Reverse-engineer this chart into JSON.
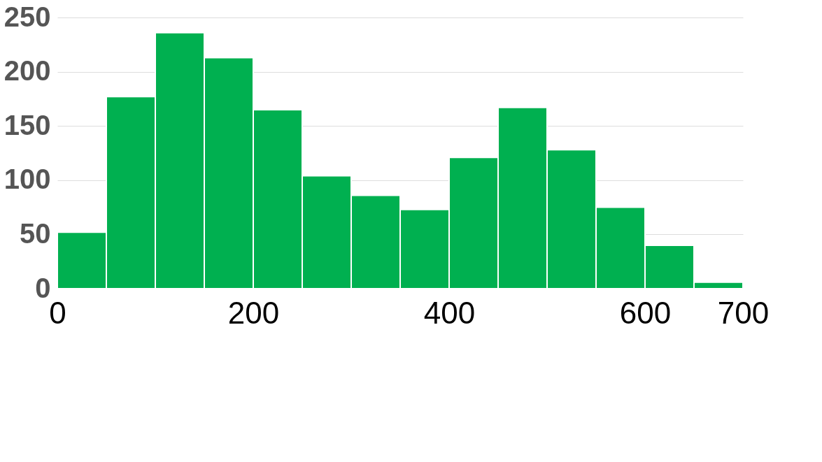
{
  "chart_data": {
    "type": "histogram",
    "bins": [
      0,
      50,
      100,
      150,
      200,
      250,
      300,
      350,
      400,
      450,
      500,
      550,
      600,
      650,
      700
    ],
    "values": [
      52,
      177,
      236,
      213,
      165,
      104,
      86,
      73,
      121,
      167,
      128,
      75,
      40,
      6
    ],
    "color": "#00b050",
    "xlim": [
      0,
      700
    ],
    "xticks": [
      0,
      200,
      400,
      600,
      700
    ],
    "ylim": [
      0,
      250
    ],
    "yticks": [
      0,
      50,
      100,
      150,
      200,
      250
    ],
    "grid": "y"
  }
}
